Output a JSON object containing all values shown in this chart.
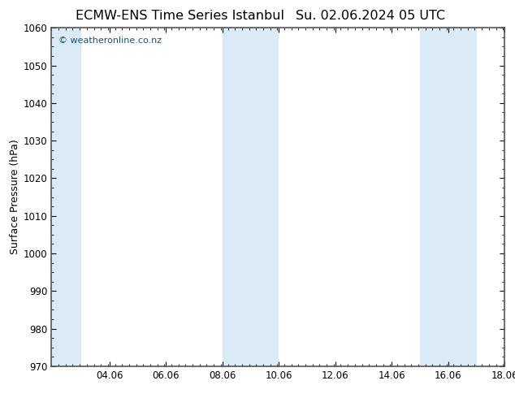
{
  "title_left": "ECMW-ENS Time Series Istanbul",
  "title_right": "Su. 02.06.2024 05 UTC",
  "ylabel": "Surface Pressure (hPa)",
  "ylim": [
    970,
    1060
  ],
  "yticks": [
    970,
    980,
    990,
    1000,
    1010,
    1020,
    1030,
    1040,
    1050,
    1060
  ],
  "xlim_start": 2.0,
  "xlim_end": 18.06,
  "xtick_labels": [
    "04.06",
    "06.06",
    "08.06",
    "10.06",
    "12.06",
    "14.06",
    "16.06",
    "18.06"
  ],
  "xtick_positions": [
    4.06,
    6.06,
    8.06,
    10.06,
    12.06,
    14.06,
    16.06,
    18.06
  ],
  "background_color": "#ffffff",
  "plot_bg_color": "#ffffff",
  "shaded_bands": [
    {
      "xmin": 2.0,
      "xmax": 3.06,
      "color": "#daeaf7"
    },
    {
      "xmin": 8.06,
      "xmax": 9.06,
      "color": "#daeaf7"
    },
    {
      "xmin": 9.06,
      "xmax": 10.06,
      "color": "#daeaf7"
    },
    {
      "xmin": 15.06,
      "xmax": 16.06,
      "color": "#daeaf7"
    },
    {
      "xmin": 16.06,
      "xmax": 17.06,
      "color": "#daeaf7"
    }
  ],
  "watermark_text": "© weatheronline.co.nz",
  "watermark_color": "#1a5276",
  "title_fontsize": 11.5,
  "tick_fontsize": 8.5,
  "ylabel_fontsize": 9,
  "border_color": "#555555",
  "spine_linewidth": 1.2
}
